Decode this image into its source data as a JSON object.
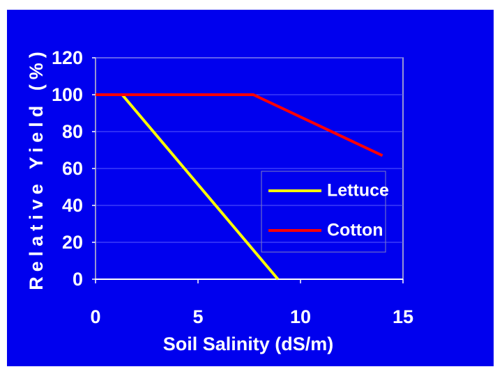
{
  "chart_data": {
    "type": "line",
    "xlabel": "Soil Salinity (dS/m)",
    "ylabel": "Relative Yield (%)",
    "series": [
      {
        "name": "Lettuce",
        "color": "#ffff00",
        "x": [
          0,
          1.3,
          8.9
        ],
        "values": [
          100,
          100,
          0
        ]
      },
      {
        "name": "Cotton",
        "color": "#ff0000",
        "x": [
          0,
          7.7,
          14
        ],
        "values": [
          100,
          100,
          67
        ]
      }
    ],
    "xlim": [
      0,
      15
    ],
    "xticks": [
      0,
      5,
      10,
      15
    ],
    "ylim": [
      0,
      120
    ],
    "yticks": [
      0,
      20,
      40,
      60,
      80,
      100,
      120
    ],
    "grid": true,
    "legend": "right"
  }
}
